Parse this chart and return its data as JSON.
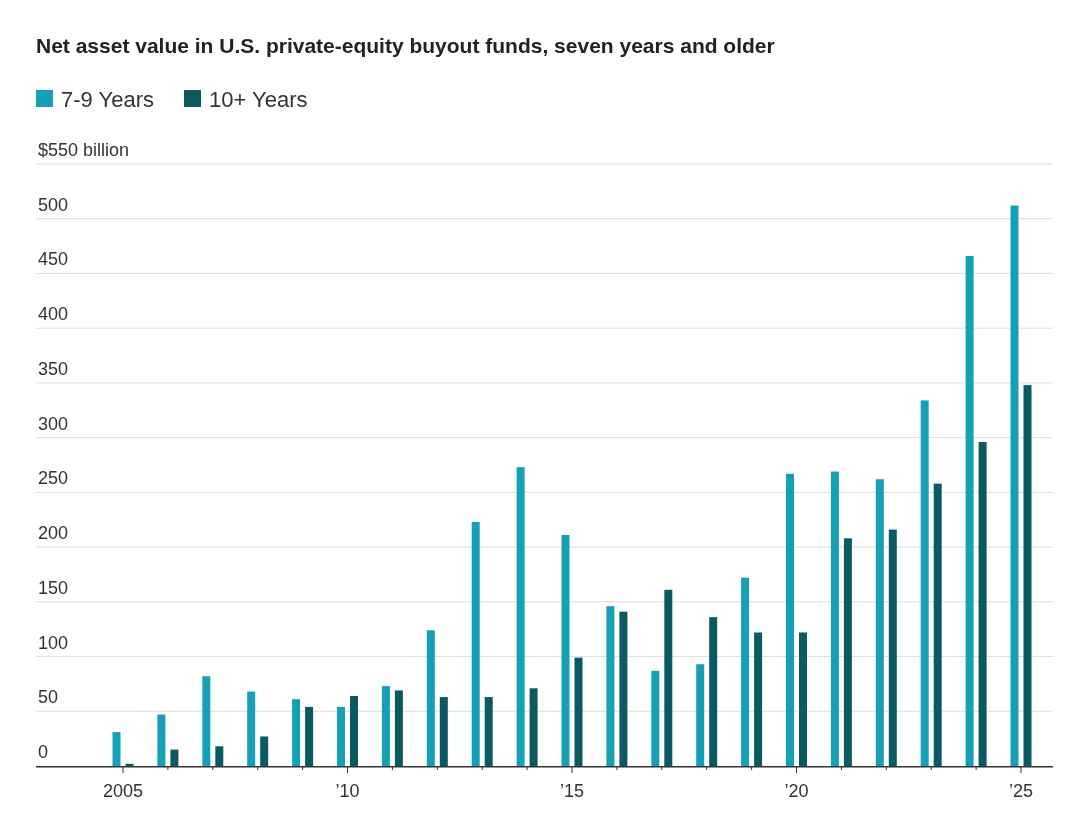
{
  "chart_data": {
    "type": "bar",
    "title": "Net asset value in U.S. private-equity buyout funds, seven years and older",
    "categories": [
      "2005",
      null,
      null,
      null,
      null,
      "’10",
      null,
      null,
      null,
      null,
      "’15",
      null,
      null,
      null,
      null,
      "’20",
      null,
      null,
      null,
      null,
      "’25"
    ],
    "series": [
      {
        "name": "7-9 Years",
        "color": "#16a0b5",
        "values": [
          31,
          47,
          82,
          68,
          61,
          54,
          73,
          124,
          223,
          273,
          211,
          146,
          87,
          93,
          172,
          267,
          269,
          262,
          334,
          466,
          512
        ]
      },
      {
        "name": "10+ Years",
        "color": "#0b5a63",
        "values": [
          2,
          15,
          18,
          27,
          54,
          64,
          69,
          63,
          63,
          71,
          99,
          141,
          161,
          136,
          122,
          122,
          208,
          216,
          258,
          296,
          348
        ]
      }
    ],
    "ylim": [
      0,
      550
    ],
    "yticks": [
      0,
      50,
      100,
      150,
      200,
      250,
      300,
      350,
      400,
      450,
      500,
      {
        "value": 550,
        "label": "$550 billion"
      }
    ],
    "grid": "y",
    "legend": "top left"
  }
}
